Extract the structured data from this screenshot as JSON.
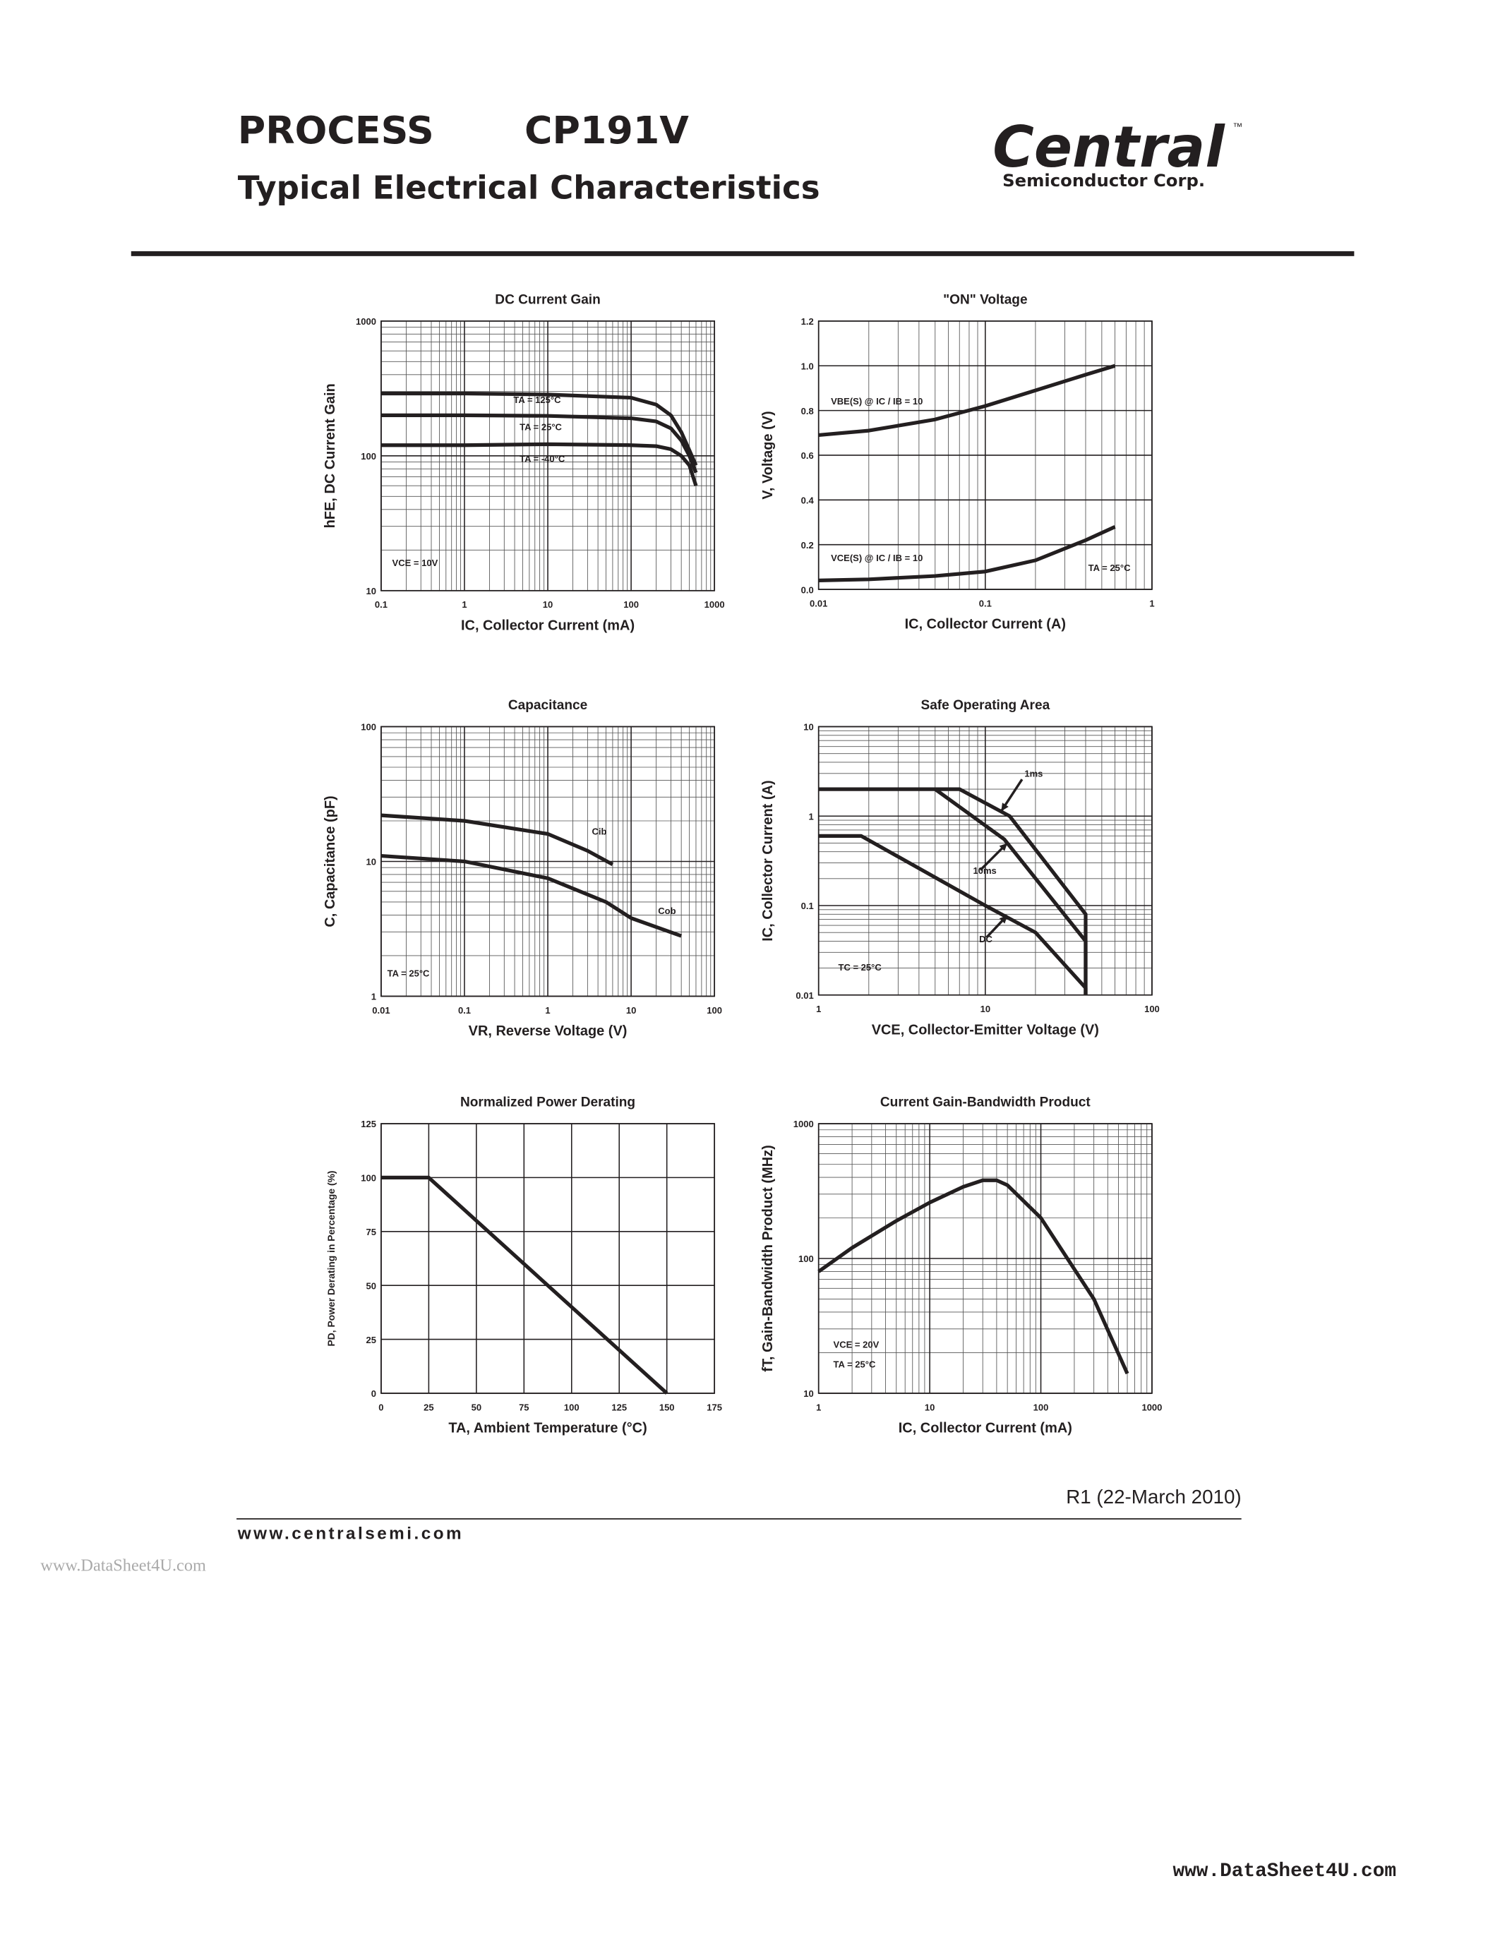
{
  "header": {
    "process": "PROCESS",
    "part": "CP191V",
    "subtitle": "Typical Electrical Characteristics",
    "logo_main": "Central",
    "logo_tm": "™",
    "logo_sub": "Semiconductor Corp."
  },
  "chart_data": [
    {
      "type": "line",
      "title": "DC Current Gain",
      "xlabel": "IC, Collector Current (mA)",
      "ylabel": "hFE, DC Current Gain",
      "xscale": "log",
      "yscale": "log",
      "grid": true,
      "xlim": [
        0.1,
        1000
      ],
      "ylim": [
        10,
        1000
      ],
      "xticks": [
        0.1,
        1,
        10,
        100,
        1000
      ],
      "yticks": [
        10,
        100,
        1000
      ],
      "series": [
        {
          "name": "TA = 125°C",
          "color": "#231f20",
          "x": [
            0.1,
            1,
            10,
            100,
            200,
            300,
            400,
            500,
            600
          ],
          "values": [
            290,
            290,
            285,
            270,
            240,
            200,
            150,
            110,
            85
          ]
        },
        {
          "name": "TA = 25°C",
          "color": "#231f20",
          "x": [
            0.1,
            1,
            10,
            100,
            200,
            300,
            400,
            500,
            600
          ],
          "values": [
            200,
            200,
            198,
            190,
            180,
            160,
            130,
            100,
            75
          ]
        },
        {
          "name": "TA = -40°C",
          "color": "#231f20",
          "x": [
            0.1,
            1,
            10,
            100,
            200,
            300,
            400,
            500,
            600
          ],
          "values": [
            120,
            120,
            122,
            120,
            118,
            112,
            100,
            85,
            60
          ]
        }
      ],
      "annotations": [
        "VCE = 10V"
      ]
    },
    {
      "type": "line",
      "title": "\"ON\" Voltage",
      "xlabel": "IC, Collector Current (A)",
      "ylabel": "V, Voltage (V)",
      "xscale": "log",
      "yscale": "linear",
      "grid": true,
      "xlim": [
        0.01,
        1
      ],
      "ylim": [
        0,
        1.2
      ],
      "xticks": [
        0.01,
        0.1,
        1
      ],
      "yticks": [
        {
          "value": 0,
          "label": "0.0"
        },
        0.2,
        0.4,
        0.6,
        0.8,
        {
          "value": 1,
          "label": "1.0"
        },
        1.2
      ],
      "series": [
        {
          "name": "VBE(S) @ IC / IB = 10",
          "color": "#231f20",
          "x": [
            0.01,
            0.02,
            0.05,
            0.1,
            0.2,
            0.4,
            0.6
          ],
          "values": [
            0.69,
            0.71,
            0.76,
            0.82,
            0.89,
            0.96,
            1.0
          ]
        },
        {
          "name": "VCE(S) @ IC / IB = 10",
          "color": "#231f20",
          "x": [
            0.01,
            0.02,
            0.05,
            0.1,
            0.2,
            0.4,
            0.6
          ],
          "values": [
            0.04,
            0.045,
            0.06,
            0.08,
            0.13,
            0.22,
            0.28
          ]
        }
      ],
      "annotations": [
        "TA = 25°C"
      ]
    },
    {
      "type": "line",
      "title": "Capacitance",
      "xlabel": "VR, Reverse Voltage (V)",
      "ylabel": "C, Capacitance (pF)",
      "xscale": "log",
      "yscale": "log",
      "grid": true,
      "xlim": [
        0.01,
        100
      ],
      "ylim": [
        1,
        100
      ],
      "xticks": [
        0.01,
        0.1,
        1,
        10,
        100
      ],
      "yticks": [
        1,
        10,
        100
      ],
      "series": [
        {
          "name": "Cib",
          "color": "#231f20",
          "x": [
            0.01,
            0.1,
            1,
            3,
            6
          ],
          "values": [
            22,
            20,
            16,
            12,
            9.5
          ]
        },
        {
          "name": "Cob",
          "color": "#231f20",
          "x": [
            0.01,
            0.1,
            1,
            5,
            10,
            40
          ],
          "values": [
            11,
            10,
            7.5,
            5,
            3.8,
            2.8
          ]
        }
      ],
      "annotations": [
        "TA = 25°C"
      ]
    },
    {
      "type": "line",
      "title": "Safe Operating Area",
      "xlabel": "VCE, Collector-Emitter Voltage (V)",
      "ylabel": "IC, Collector Current (A)",
      "xscale": "log",
      "yscale": "log",
      "grid": true,
      "xlim": [
        1,
        100
      ],
      "ylim": [
        0.01,
        10
      ],
      "xticks": [
        1,
        10,
        100
      ],
      "yticks": [
        0.01,
        0.1,
        1,
        10
      ],
      "series": [
        {
          "name": "1ms",
          "color": "#231f20",
          "x": [
            1,
            7,
            14,
            40,
            40
          ],
          "values": [
            2,
            2,
            1,
            0.08,
            0.01
          ]
        },
        {
          "name": "10ms",
          "color": "#231f20",
          "x": [
            5,
            13,
            40,
            40
          ],
          "values": [
            2,
            0.55,
            0.04,
            0.01
          ]
        },
        {
          "name": "DC",
          "color": "#231f20",
          "x": [
            1,
            1.8,
            10,
            20,
            40,
            40
          ],
          "values": [
            0.6,
            0.6,
            0.1,
            0.05,
            0.012,
            0.01
          ]
        }
      ],
      "annotations": [
        "TC = 25°C"
      ]
    },
    {
      "type": "line",
      "title": "Normalized Power Derating",
      "xlabel": "TA, Ambient Temperature (°C)",
      "ylabel": "PD, Power Derating in Percentage (%)",
      "xscale": "linear",
      "yscale": "linear",
      "grid": true,
      "xlim": [
        0,
        175
      ],
      "ylim": [
        0,
        125
      ],
      "xticks": [
        0,
        25,
        50,
        75,
        100,
        125,
        150,
        175
      ],
      "yticks": [
        0,
        25,
        50,
        75,
        100,
        125
      ],
      "series": [
        {
          "color": "#231f20",
          "x": [
            0,
            25,
            150
          ],
          "values": [
            100,
            100,
            0
          ]
        }
      ]
    },
    {
      "type": "line",
      "title": "Current Gain-Bandwidth Product",
      "xlabel": "IC, Collector Current (mA)",
      "ylabel": "fT, Gain-Bandwidth Product (MHz)",
      "xscale": "log",
      "yscale": "log",
      "grid": true,
      "xlim": [
        1,
        1000
      ],
      "ylim": [
        10,
        1000
      ],
      "xticks": [
        1,
        10,
        100,
        1000
      ],
      "yticks": [
        10,
        100,
        1000
      ],
      "series": [
        {
          "color": "#231f20",
          "x": [
            1,
            2,
            5,
            10,
            20,
            30,
            40,
            50,
            100,
            300,
            600
          ],
          "values": [
            80,
            120,
            190,
            260,
            340,
            380,
            380,
            350,
            200,
            50,
            14
          ]
        }
      ],
      "annotations": [
        "VCE = 20V",
        "TA = 25°C"
      ]
    }
  ],
  "footer": {
    "revision": "R1 (22-March 2010)",
    "website": "www.centralsemi.com",
    "watermark_left": "www.DataSheet4U.com",
    "watermark_right": "www.DataSheet4U.com"
  }
}
